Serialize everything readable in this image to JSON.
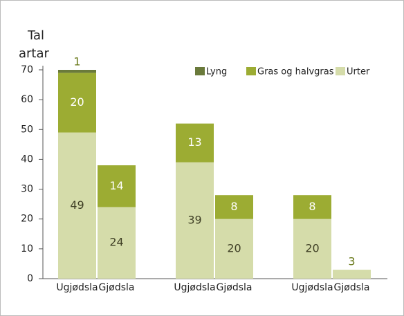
{
  "chart_data": {
    "type": "stacked_bar",
    "ylabel": [
      "Tal",
      "artar"
    ],
    "categories": [
      "Ugjødsla",
      "Gjødsla",
      "Ugjødsla",
      "Gjødsla",
      "Ugjødsla",
      "Gjødsla"
    ],
    "series": [
      {
        "name": "Urter",
        "color": "#d5dcaa",
        "values": [
          49,
          24,
          39,
          20,
          20,
          3
        ]
      },
      {
        "name": "Gras og halvgras",
        "color": "#9cac33",
        "values": [
          20,
          14,
          13,
          8,
          8,
          null
        ]
      },
      {
        "name": "Lyng",
        "color": "#6a7a3b",
        "values": [
          1,
          null,
          null,
          null,
          null,
          null
        ]
      }
    ],
    "legend_order": [
      2,
      1,
      0
    ],
    "ylim": [
      0,
      70
    ],
    "yticks": [
      0,
      10,
      20,
      30,
      40,
      50,
      60,
      70
    ]
  }
}
